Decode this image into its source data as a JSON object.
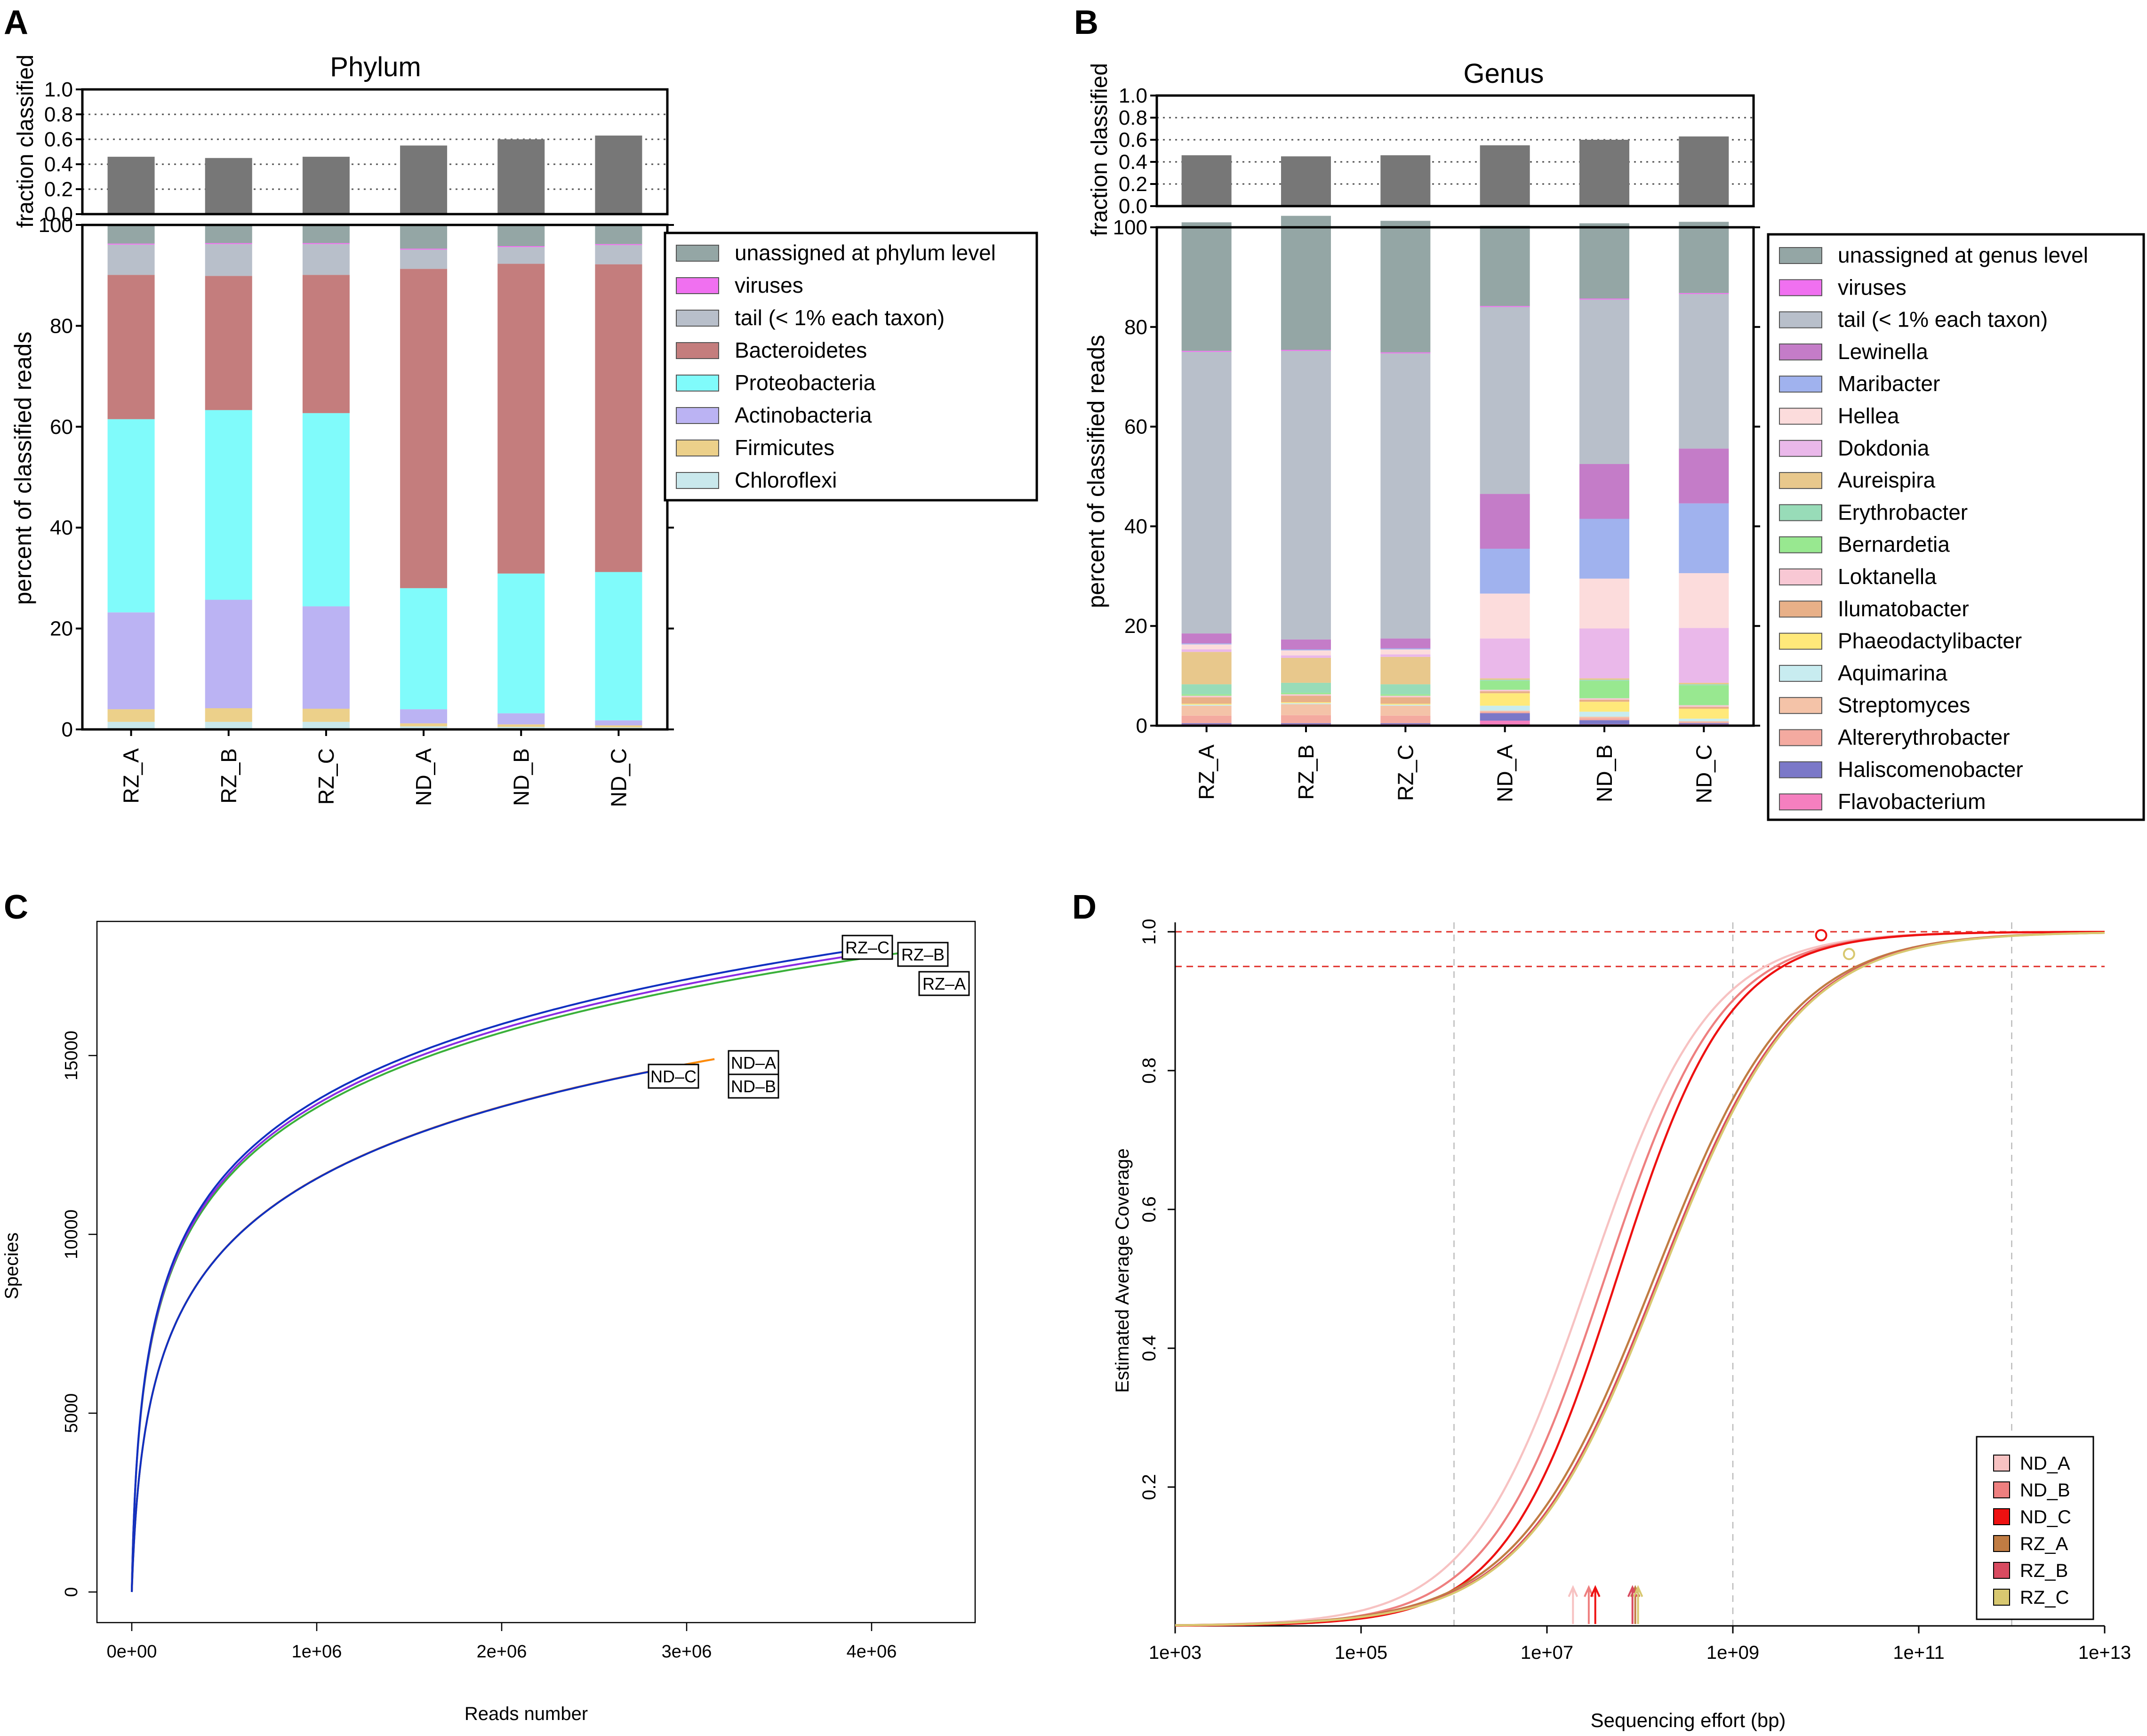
{
  "panels": {
    "A": {
      "letter": "A",
      "title": "Phylum",
      "frac_ylabel": "fraction classified",
      "pct_ylabel": "percent of classified reads",
      "frac_ticks": [
        "0.0",
        "0.2",
        "0.4",
        "0.6",
        "0.8",
        "1.0"
      ],
      "pct_ticks": [
        "0",
        "20",
        "40",
        "60",
        "80",
        "100"
      ]
    },
    "B": {
      "letter": "B",
      "title": "Genus",
      "frac_ylabel": "fraction classified",
      "pct_ylabel": "percent of classified reads",
      "frac_ticks": [
        "0.0",
        "0.2",
        "0.4",
        "0.6",
        "0.8",
        "1.0"
      ],
      "pct_ticks": [
        "0",
        "20",
        "40",
        "60",
        "80",
        "100"
      ]
    },
    "C": {
      "letter": "C"
    },
    "D": {
      "letter": "D"
    }
  },
  "chart_data": [
    {
      "id": "A-fraction",
      "type": "bar",
      "title": "Phylum",
      "ylabel": "fraction classified",
      "categories": [
        "RZ_A",
        "RZ_B",
        "RZ_C",
        "ND_A",
        "ND_B",
        "ND_C"
      ],
      "values": [
        0.46,
        0.45,
        0.46,
        0.55,
        0.6,
        0.63
      ],
      "ylim": [
        0,
        1.0
      ],
      "color": "#777777"
    },
    {
      "id": "A-composition",
      "type": "bar",
      "stacked": true,
      "ylabel": "percent of classified reads",
      "categories": [
        "RZ_A",
        "RZ_B",
        "RZ_C",
        "ND_A",
        "ND_B",
        "ND_C"
      ],
      "ylim": [
        0,
        100
      ],
      "legend_position": "right",
      "series": [
        {
          "name": "Chloroflexi",
          "color": "#c9e8ec",
          "values": [
            1.5,
            1.5,
            1.5,
            0.6,
            0.5,
            0.4
          ]
        },
        {
          "name": "Firmicutes",
          "color": "#ecd08a",
          "values": [
            2.5,
            2.7,
            2.6,
            0.6,
            0.5,
            0.4
          ]
        },
        {
          "name": "Actinobacteria",
          "color": "#bbb3f3",
          "values": [
            19.2,
            21.5,
            20.3,
            2.8,
            2.2,
            1.0
          ]
        },
        {
          "name": "Proteobacteria",
          "color": "#80fbfb",
          "values": [
            38.3,
            37.6,
            38.3,
            24.0,
            27.7,
            29.4
          ]
        },
        {
          "name": "Bacteroidetes",
          "color": "#c47d7d",
          "values": [
            28.6,
            26.6,
            27.4,
            63.3,
            61.4,
            61.0
          ]
        },
        {
          "name": "tail (< 1% each taxon)",
          "color": "#b8bfca",
          "values": [
            6.0,
            6.3,
            6.1,
            3.8,
            3.3,
            3.8
          ]
        },
        {
          "name": "viruses",
          "color": "#f070f0",
          "values": [
            0.2,
            0.2,
            0.2,
            0.2,
            0.2,
            0.2
          ]
        },
        {
          "name": "unassigned at phylum level",
          "color": "#94a6a5",
          "values": [
            3.7,
            3.6,
            3.6,
            4.7,
            4.2,
            3.8
          ]
        }
      ],
      "legend_order": [
        "unassigned at phylum level",
        "viruses",
        "tail (< 1% each taxon)",
        "Bacteroidetes",
        "Proteobacteria",
        "Actinobacteria",
        "Firmicutes",
        "Chloroflexi"
      ]
    },
    {
      "id": "B-fraction",
      "type": "bar",
      "title": "Genus",
      "ylabel": "fraction classified",
      "categories": [
        "RZ_A",
        "RZ_B",
        "RZ_C",
        "ND_A",
        "ND_B",
        "ND_C"
      ],
      "values": [
        0.46,
        0.45,
        0.46,
        0.55,
        0.6,
        0.63
      ],
      "ylim": [
        0,
        1.0
      ],
      "color": "#777777"
    },
    {
      "id": "B-composition",
      "type": "bar",
      "stacked": true,
      "ylabel": "percent of classified reads",
      "categories": [
        "RZ_A",
        "RZ_B",
        "RZ_C",
        "ND_A",
        "ND_B",
        "ND_C"
      ],
      "ylim": [
        0,
        100
      ],
      "legend_position": "right",
      "series": [
        {
          "name": "Flavobacterium",
          "color": "#f57fbf",
          "values": [
            0.3,
            0.3,
            0.3,
            1.0,
            0.3,
            0.3
          ]
        },
        {
          "name": "Haliscomenobacter",
          "color": "#7b78c8",
          "values": [
            0.2,
            0.2,
            0.2,
            1.5,
            0.8,
            0.2
          ]
        },
        {
          "name": "Altererythrobacter",
          "color": "#f4aaa0",
          "values": [
            1.5,
            1.6,
            1.5,
            0.3,
            0.4,
            0.2
          ]
        },
        {
          "name": "Streptomyces",
          "color": "#f4c3a8",
          "values": [
            2.0,
            2.2,
            2.0,
            0.2,
            0.3,
            0.2
          ]
        },
        {
          "name": "Aquimarina",
          "color": "#c8ecf0",
          "values": [
            0.2,
            0.2,
            0.2,
            1.0,
            1.0,
            0.5
          ]
        },
        {
          "name": "Phaeodactylibacter",
          "color": "#ffe97a",
          "values": [
            0.2,
            0.2,
            0.2,
            2.5,
            2.0,
            2.0
          ]
        },
        {
          "name": "Ilumatobacter",
          "color": "#e8b088",
          "values": [
            1.3,
            1.3,
            1.3,
            0.4,
            0.4,
            0.4
          ]
        },
        {
          "name": "Loktanella",
          "color": "#f8c8d4",
          "values": [
            0.3,
            0.3,
            0.3,
            0.3,
            0.3,
            0.3
          ]
        },
        {
          "name": "Bernardetia",
          "color": "#98e890",
          "values": [
            0.3,
            0.3,
            0.3,
            1.8,
            3.5,
            4.0
          ]
        },
        {
          "name": "Erythrobacter",
          "color": "#98dcb8",
          "values": [
            2.0,
            2.0,
            2.0,
            0.2,
            0.2,
            0.2
          ]
        },
        {
          "name": "Aureispira",
          "color": "#e8c88c",
          "values": [
            6.5,
            5.0,
            5.5,
            0.3,
            0.3,
            0.3
          ]
        },
        {
          "name": "Dokdonia",
          "color": "#eab8ea",
          "values": [
            0.5,
            0.5,
            0.5,
            8.0,
            10.0,
            11.0
          ]
        },
        {
          "name": "Hellea",
          "color": "#fcdcdc",
          "values": [
            1.0,
            1.0,
            1.0,
            9.0,
            10.0,
            11.0
          ]
        },
        {
          "name": "Maribacter",
          "color": "#a0b2ee",
          "values": [
            0.2,
            0.2,
            0.2,
            9.0,
            12.0,
            14.0
          ]
        },
        {
          "name": "Lewinella",
          "color": "#c47cc8",
          "values": [
            2.0,
            2.0,
            2.0,
            11.0,
            11.0,
            11.0
          ]
        },
        {
          "name": "tail (< 1% each taxon)",
          "color": "#b8bfca",
          "values": [
            56.5,
            57.9,
            57.2,
            37.5,
            33.0,
            31.0
          ]
        },
        {
          "name": "viruses",
          "color": "#f070f0",
          "values": [
            0.2,
            0.2,
            0.2,
            0.2,
            0.2,
            0.2
          ]
        },
        {
          "name": "unassigned at genus level",
          "color": "#94a6a5",
          "values": [
            25.8,
            26.9,
            26.4,
            16.1,
            15.1,
            14.3
          ]
        }
      ],
      "legend_order": [
        "unassigned at genus level",
        "viruses",
        "tail (< 1% each taxon)",
        "Lewinella",
        "Maribacter",
        "Hellea",
        "Dokdonia",
        "Aureispira",
        "Erythrobacter",
        "Bernardetia",
        "Loktanella",
        "Ilumatobacter",
        "Phaeodactylibacter",
        "Aquimarina",
        "Streptomyces",
        "Altererythrobacter",
        "Haliscomenobacter",
        "Flavobacterium"
      ]
    },
    {
      "id": "C-rarefaction",
      "type": "line",
      "xlabel": "Reads number",
      "ylabel": "Species",
      "xlim": [
        0,
        4500000
      ],
      "ylim": [
        0,
        19000
      ],
      "x_ticks": [
        0,
        1000000,
        2000000,
        3000000,
        4000000
      ],
      "x_tick_labels": [
        "0e+00",
        "1e+06",
        "2e+06",
        "3e+06",
        "4e+06"
      ],
      "y_ticks": [
        0,
        5000,
        10000,
        15000
      ],
      "y_tick_labels": [
        "0",
        "5000",
        "10000",
        "15000"
      ],
      "series": [
        {
          "name": "RZ-A",
          "label": "RZ–A",
          "color": "#3ab03a",
          "x_max": 4200000,
          "y_max": 17900,
          "label_anchor": "right-below"
        },
        {
          "name": "RZ-B",
          "label": "RZ–B",
          "color": "#8a2be2",
          "x_max": 4100000,
          "y_max": 17950,
          "label_anchor": "right"
        },
        {
          "name": "RZ-C",
          "label": "RZ–C",
          "color": "#1030c0",
          "x_max": 3950000,
          "y_max": 17980,
          "label_anchor": "left"
        },
        {
          "name": "ND-A",
          "label": "ND–A",
          "color": "#9a4ed0",
          "x_max": 3150000,
          "y_max": 14900,
          "label_anchor": "right"
        },
        {
          "name": "ND-B",
          "label": "ND–B",
          "color": "#ff8c00",
          "x_max": 3150000,
          "y_max": 14900,
          "label_anchor": "right-below"
        },
        {
          "name": "ND-C",
          "label": "ND–C",
          "color": "#1030c0",
          "x_max": 3000000,
          "y_max": 14750,
          "label_anchor": "left"
        }
      ]
    },
    {
      "id": "D-coverage",
      "type": "line",
      "xlabel": "Sequencing effort (bp)",
      "ylabel": "Estimated Average Coverage",
      "x_scale": "log10",
      "xlim_log10": [
        3,
        13
      ],
      "ylim": [
        0,
        1.0
      ],
      "x_ticks_log10": [
        3,
        5,
        7,
        9,
        11,
        13
      ],
      "x_tick_labels": [
        "1e+03",
        "1e+05",
        "1e+07",
        "1e+09",
        "1e+11",
        "1e+13"
      ],
      "y_ticks": [
        0.2,
        0.4,
        0.6,
        0.8,
        1.0
      ],
      "y_tick_labels": [
        "0.2",
        "0.4",
        "0.6",
        "0.8",
        "1.0"
      ],
      "reference_lines": [
        1.0,
        0.95
      ],
      "vertical_grid_log10": [
        6,
        9,
        12
      ],
      "legend_position": "bottom-right",
      "series": [
        {
          "name": "ND_A",
          "color": "#f7c2c2",
          "midpoint_log10": 7.45,
          "slope": 1.55,
          "arrow_log10": 7.28
        },
        {
          "name": "ND_B",
          "color": "#ee7f7f",
          "midpoint_log10": 7.62,
          "slope": 1.6,
          "arrow_log10": 7.45
        },
        {
          "name": "ND_C",
          "color": "#ee1111",
          "midpoint_log10": 7.75,
          "slope": 1.65,
          "arrow_log10": 7.52
        },
        {
          "name": "RZ_A",
          "color": "#c07c43",
          "midpoint_log10": 8.15,
          "slope": 1.35,
          "arrow_log10": 7.95
        },
        {
          "name": "RZ_B",
          "color": "#d84a60",
          "midpoint_log10": 8.2,
          "slope": 1.35,
          "arrow_log10": 7.92
        },
        {
          "name": "RZ_C",
          "color": "#d8c870",
          "midpoint_log10": 8.22,
          "slope": 1.35,
          "arrow_log10": 7.98
        }
      ],
      "markers": [
        {
          "series": "ND_C",
          "x_log10": 9.95,
          "y": 0.995
        },
        {
          "series": "RZ_C",
          "x_log10": 10.25,
          "y": 0.968
        }
      ]
    }
  ]
}
